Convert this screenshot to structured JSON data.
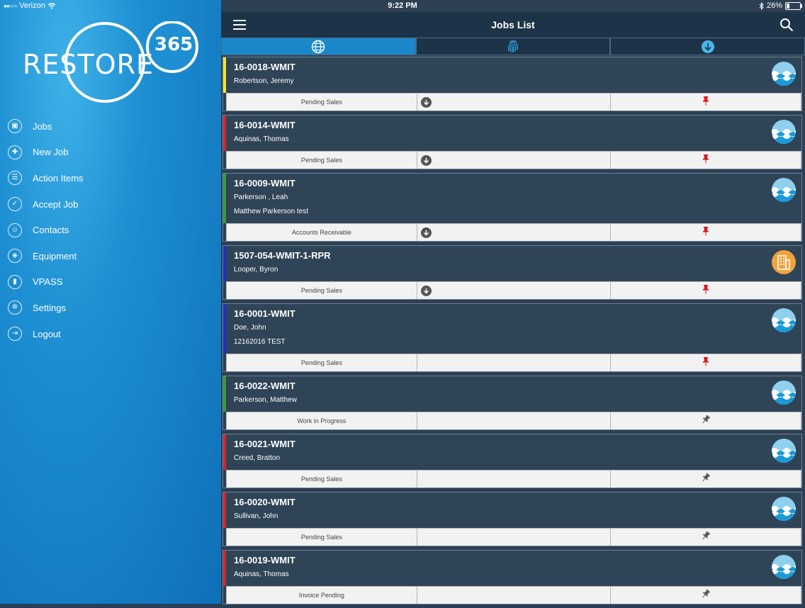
{
  "status_bar": {
    "carrier": "Verizon",
    "time": "9:22 PM",
    "battery": "26%",
    "battery_level": 0.26
  },
  "logo": {
    "word": "RESTORE",
    "number": "365"
  },
  "sidebar": {
    "items": [
      {
        "label": "Jobs",
        "icon": "jobs-icon"
      },
      {
        "label": "New Job",
        "icon": "new-job-icon"
      },
      {
        "label": "Action Items",
        "icon": "list-icon"
      },
      {
        "label": "Accept Job",
        "icon": "accept-job-icon"
      },
      {
        "label": "Contacts",
        "icon": "contacts-icon"
      },
      {
        "label": "Equipment",
        "icon": "equipment-icon"
      },
      {
        "label": "VPASS",
        "icon": "signal-bars-icon"
      },
      {
        "label": "Settings",
        "icon": "gear-icon"
      },
      {
        "label": "Logout",
        "icon": "logout-icon"
      }
    ]
  },
  "header": {
    "title": "Jobs List"
  },
  "tabs": [
    {
      "icon": "globe-icon",
      "active": true
    },
    {
      "icon": "fingerprint-icon",
      "active": false
    },
    {
      "icon": "download-icon",
      "active": false
    }
  ],
  "colors": {
    "stripe_yellow": "#f3e62b",
    "stripe_red": "#d6242c",
    "stripe_green": "#3a9b3a",
    "stripe_blue": "#2031c9",
    "pin_red": "#e0141c",
    "pin_gray": "#555555"
  },
  "jobs": [
    {
      "id": "16-0018-WMIT",
      "client": "Robertson, Jeremy",
      "desc": "",
      "status": "Pending Sales",
      "stripe": "#f3e62b",
      "type": "water",
      "download": true,
      "pin": "red"
    },
    {
      "id": "16-0014-WMIT",
      "client": "Aquinas, Thomas",
      "desc": "",
      "status": "Pending Sales",
      "stripe": "#d6242c",
      "type": "water",
      "download": true,
      "pin": "red"
    },
    {
      "id": "16-0009-WMIT",
      "client": "Parkerson , Leah",
      "desc": "Matthew Parkerson test",
      "status": "Accounts Receivable",
      "stripe": "#3a9b3a",
      "type": "water",
      "download": true,
      "pin": "red"
    },
    {
      "id": "1507-054-WMIT-1-RPR",
      "client": "Looper, Byron",
      "desc": "",
      "status": "Pending Sales",
      "stripe": "#2031c9",
      "type": "building",
      "download": true,
      "pin": "red"
    },
    {
      "id": "16-0001-WMIT",
      "client": "Doe, John",
      "desc": "12162016 TEST",
      "status": "Pending Sales",
      "stripe": "#2031c9",
      "type": "water",
      "download": false,
      "pin": "red"
    },
    {
      "id": "16-0022-WMIT",
      "client": "Parkerson, Matthew",
      "desc": "",
      "status": "Work in Progress",
      "stripe": "#3a9b3a",
      "type": "water",
      "download": false,
      "pin": "gray"
    },
    {
      "id": "16-0021-WMIT",
      "client": "Creed, Bratton",
      "desc": "",
      "status": "Pending Sales",
      "stripe": "#d6242c",
      "type": "water",
      "download": false,
      "pin": "gray"
    },
    {
      "id": "16-0020-WMIT",
      "client": "Sullivan, John",
      "desc": "",
      "status": "Pending Sales",
      "stripe": "#d6242c",
      "type": "water",
      "download": false,
      "pin": "gray"
    },
    {
      "id": "16-0019-WMIT",
      "client": "Aquinas, Thomas",
      "desc": "",
      "status": "Invoice Pending",
      "stripe": "#d6242c",
      "type": "water",
      "download": false,
      "pin": "gray"
    }
  ]
}
